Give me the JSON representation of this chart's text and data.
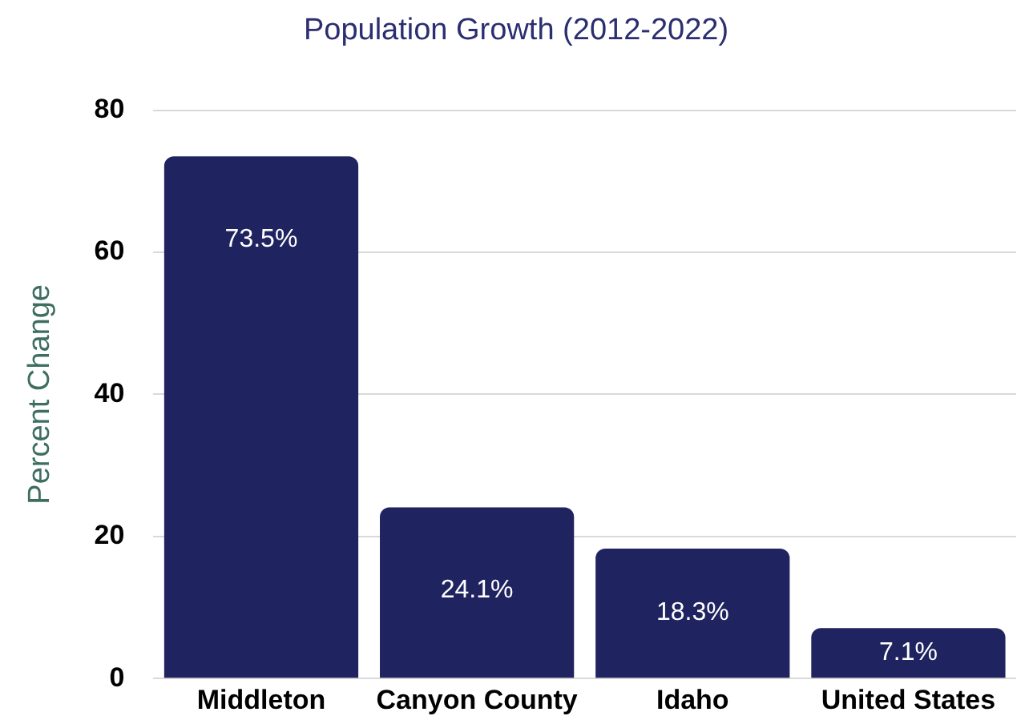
{
  "chart_data": {
    "type": "bar",
    "title": "Population Growth (2012-2022)",
    "ylabel": "Percent Change",
    "categories": [
      "Middleton",
      "Canyon County",
      "Idaho",
      "United States"
    ],
    "values": [
      73.5,
      24.1,
      18.3,
      7.1
    ],
    "color": "#1f2360",
    "value_labels": [
      "73.5%",
      "24.1%",
      "18.3%",
      "7.1%"
    ],
    "ylim": [
      0,
      80
    ],
    "yticks": [
      0,
      20,
      40,
      60,
      80
    ],
    "grid": "y"
  }
}
